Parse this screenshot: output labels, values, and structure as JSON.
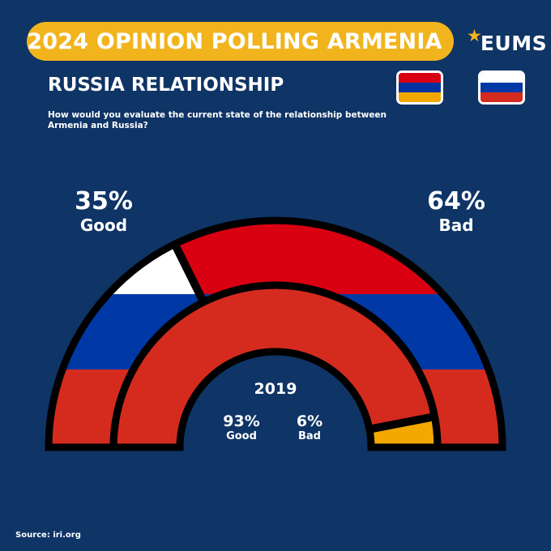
{
  "header": {
    "banner_title": "2024 OPINION POLLING ARMENIA",
    "logo_text": "EUMS",
    "logo_icon": "star-icon"
  },
  "section_title": "RUSSIA RELATIONSHIP",
  "question": "How would you evaluate the current state of the relationship between Armenia and Russia?",
  "flags": {
    "armenia": [
      "#d90012",
      "#0033a0",
      "#f2a800"
    ],
    "russia": [
      "#ffffff",
      "#0039a6",
      "#d52b1e"
    ]
  },
  "chart_data": [
    {
      "type": "pie",
      "variant": "semi-donut",
      "title": "",
      "categories": [
        "Good",
        "Bad"
      ],
      "values": [
        35,
        64
      ],
      "labels": [
        "35%",
        "64%"
      ],
      "colors": [
        "#ffffff",
        "#d90012"
      ],
      "ring": "outer"
    },
    {
      "type": "pie",
      "variant": "semi-donut",
      "title": "2019",
      "categories": [
        "Good",
        "Bad"
      ],
      "values": [
        93,
        6
      ],
      "labels": [
        "93%",
        "6%"
      ],
      "colors": [
        "#d52b1e",
        "#f2a800"
      ],
      "ring": "inner"
    }
  ],
  "source": "Source: iri.org"
}
